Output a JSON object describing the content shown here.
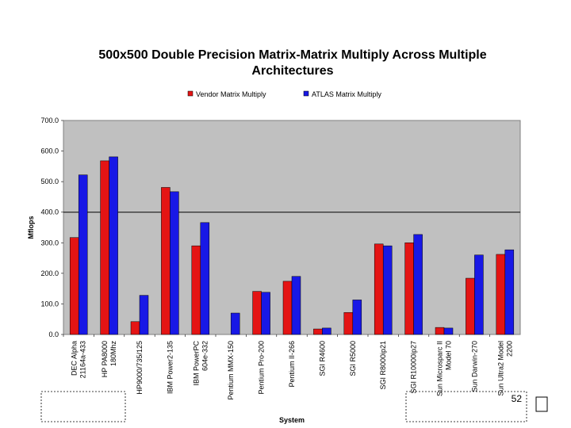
{
  "page": {
    "slide_number": "52"
  },
  "chart_data": {
    "type": "bar",
    "title_lines": [
      "500x500 Double Precision Matrix-Matrix Multiply Across Multiple",
      "Architectures"
    ],
    "xlabel": "System",
    "ylabel": "Mflops",
    "ylim": [
      0,
      700
    ],
    "yticks": [
      0,
      100,
      200,
      300,
      400,
      500,
      600,
      700
    ],
    "ytick_labels": [
      "0.0",
      "100.0",
      "200.0",
      "300.0",
      "400.0",
      "500.0",
      "600.0",
      "700.0"
    ],
    "legend_position": "top",
    "categories": [
      [
        "DEC Alpha",
        "21164a-433"
      ],
      [
        "HP PA8000",
        "180Mhz"
      ],
      [
        "HP9000/735/125"
      ],
      [
        "IBM Power2-135"
      ],
      [
        "IBM PowerPC",
        "604e-332"
      ],
      [
        "Pentium MMX-150"
      ],
      [
        "Pentium Pro-200"
      ],
      [
        "Pentium II-266"
      ],
      [
        "SGI R4600"
      ],
      [
        "SGI R5000"
      ],
      [
        "SGI R8000ip21"
      ],
      [
        "SGI R10000ip27"
      ],
      [
        "Sun Microsparc II",
        "Model 70"
      ],
      [
        "Sun Darwin-270"
      ],
      [
        "Sun Ultra2 Model",
        "2200"
      ]
    ],
    "series": [
      {
        "name": "Vendor Matrix Multiply",
        "color": "#e41414",
        "values": [
          317,
          568,
          42,
          481,
          290,
          0,
          141,
          174,
          18,
          72,
          296,
          300,
          23,
          184,
          262
        ]
      },
      {
        "name": "ATLAS Matrix Multiply",
        "color": "#1818e6",
        "values": [
          522,
          581,
          128,
          467,
          366,
          70,
          138,
          190,
          21,
          113,
          290,
          327,
          21,
          260,
          277
        ]
      }
    ],
    "colors": {
      "plot_background": "#c0c0c0",
      "gridline": "#000000"
    }
  }
}
